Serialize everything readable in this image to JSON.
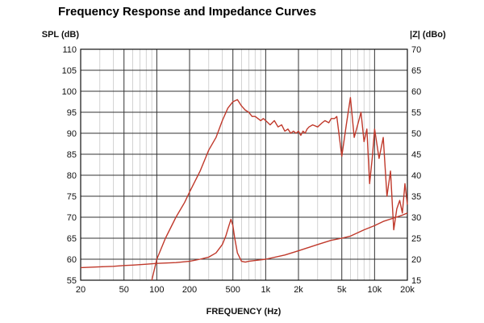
{
  "chart_data": {
    "type": "line",
    "title": "Frequency Response and Impedance Curves",
    "xlabel": "FREQUENCY (Hz)",
    "ylabel_left": "SPL (dB)",
    "ylabel_right": "|Z| (dBo)",
    "x_scale": "log",
    "xlim": [
      20,
      20000
    ],
    "ylim_left": [
      55,
      110
    ],
    "ylim_right": [
      15,
      70
    ],
    "x_ticks": [
      20,
      50,
      100,
      200,
      500,
      1000,
      2000,
      5000,
      10000,
      20000
    ],
    "x_tick_labels": [
      "20",
      "50",
      "100",
      "200",
      "500",
      "1k",
      "2k",
      "5k",
      "10k",
      "20k"
    ],
    "y_left_ticks": [
      55,
      60,
      65,
      70,
      75,
      80,
      85,
      90,
      95,
      100,
      105,
      110
    ],
    "y_right_ticks": [
      15,
      20,
      25,
      30,
      35,
      40,
      45,
      50,
      55,
      60,
      65,
      70
    ],
    "grid": true,
    "line_color": "#c0392b",
    "series": [
      {
        "axis": "left",
        "x": [
          90,
          100,
          120,
          150,
          180,
          200,
          250,
          300,
          350,
          400,
          450,
          500,
          550,
          600,
          650,
          700,
          750,
          800,
          850,
          900,
          950,
          1000,
          1100,
          1200,
          1300,
          1400,
          1500,
          1600,
          1700,
          1800,
          1900,
          2000,
          2100,
          2200,
          2300,
          2400,
          2500,
          2700,
          3000,
          3300,
          3500,
          3800,
          4000,
          4300,
          4500,
          5000,
          5500,
          6000,
          6500,
          7000,
          7500,
          8000,
          8500,
          9000,
          9500,
          10000,
          11000,
          12000,
          13000,
          14000,
          15000,
          16000,
          17000,
          18000,
          19000,
          20000
        ],
        "values": [
          55,
          60,
          65,
          70,
          73.5,
          76,
          81,
          86,
          89,
          93,
          96,
          97.5,
          98,
          96.5,
          95.5,
          95,
          94,
          94,
          93.5,
          93,
          93.5,
          93,
          92,
          93,
          91.5,
          92,
          90.5,
          91,
          90,
          90.5,
          90,
          90.5,
          89.5,
          90.5,
          90,
          91,
          91.5,
          92,
          91.5,
          92.5,
          93,
          92.5,
          93.5,
          93.5,
          94,
          84.5,
          92,
          98.5,
          89,
          92,
          95,
          88,
          91,
          78,
          84,
          91,
          84,
          89,
          75,
          81,
          67,
          72,
          74,
          71,
          78,
          73
        ]
      },
      {
        "axis": "right",
        "x": [
          20,
          30,
          40,
          50,
          60,
          80,
          100,
          150,
          200,
          250,
          300,
          350,
          400,
          430,
          460,
          480,
          500,
          520,
          550,
          600,
          650,
          700,
          800,
          1000,
          1500,
          2000,
          3000,
          4000,
          5000,
          6000,
          8000,
          10000,
          12000,
          15000,
          18000,
          20000
        ],
        "values": [
          18,
          18.2,
          18.3,
          18.5,
          18.6,
          18.8,
          19,
          19.2,
          19.5,
          20,
          20.5,
          21.5,
          23.5,
          25.5,
          28,
          29.5,
          28,
          25,
          21.5,
          19.5,
          19.3,
          19.5,
          19.7,
          20,
          21,
          22,
          23.5,
          24.5,
          25,
          25.5,
          27,
          28,
          29,
          29.8,
          30.5,
          31
        ]
      }
    ]
  }
}
